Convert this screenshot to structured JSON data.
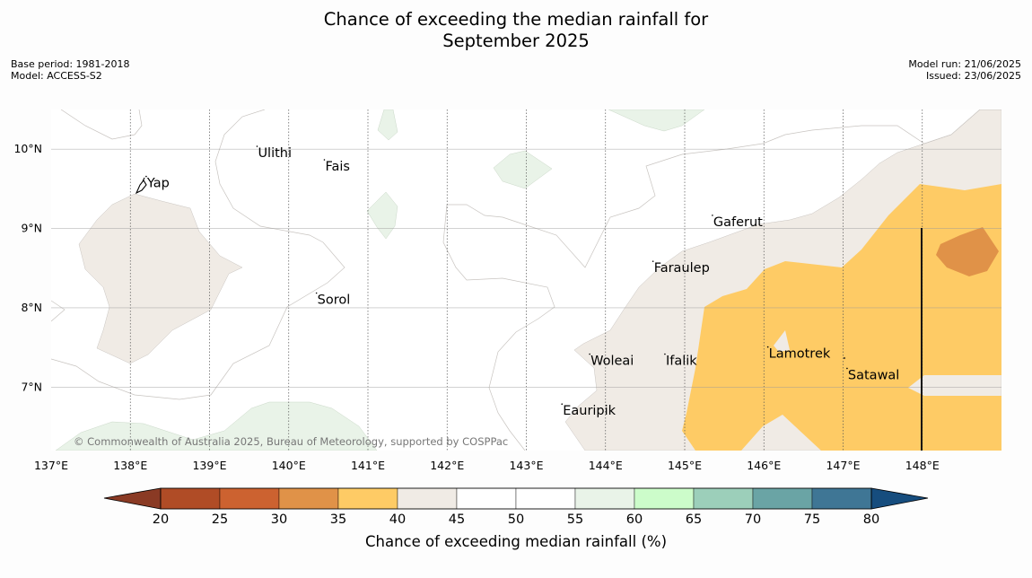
{
  "title": {
    "line1": "Chance of exceeding the median rainfall for",
    "line2": "September 2025"
  },
  "meta_left": {
    "base_period": "Base period: 1981-2018",
    "model": "Model: ACCESS-S2"
  },
  "meta_right": {
    "model_run": "Model run: 21/06/2025",
    "issued": "Issued: 23/06/2025"
  },
  "map": {
    "extent": {
      "lon_min": 137.0,
      "lon_max": 149.0,
      "lat_min": 6.2,
      "lat_max": 10.5
    },
    "lon_ticks": [
      {
        "value": 137,
        "label": "137°E"
      },
      {
        "value": 138,
        "label": "138°E"
      },
      {
        "value": 139,
        "label": "139°E"
      },
      {
        "value": 140,
        "label": "140°E"
      },
      {
        "value": 141,
        "label": "141°E"
      },
      {
        "value": 142,
        "label": "142°E"
      },
      {
        "value": 143,
        "label": "143°E"
      },
      {
        "value": 144,
        "label": "144°E"
      },
      {
        "value": 145,
        "label": "145°E"
      },
      {
        "value": 146,
        "label": "146°E"
      },
      {
        "value": 147,
        "label": "147°E"
      },
      {
        "value": 148,
        "label": "148°E"
      }
    ],
    "lat_ticks": [
      {
        "value": 10,
        "label": "10°N"
      },
      {
        "value": 9,
        "label": "9°N"
      },
      {
        "value": 8,
        "label": "8°N"
      },
      {
        "value": 7,
        "label": "7°N"
      }
    ],
    "places": [
      {
        "name": "Yap",
        "lon": 138.2,
        "lat": 9.52
      },
      {
        "name": "Ulithi",
        "lon": 139.6,
        "lat": 9.9
      },
      {
        "name": "Fais",
        "lon": 140.45,
        "lat": 9.73
      },
      {
        "name": "Gaferut",
        "lon": 145.35,
        "lat": 9.03
      },
      {
        "name": "Faraulep",
        "lon": 144.6,
        "lat": 8.45
      },
      {
        "name": "Sorol",
        "lon": 140.35,
        "lat": 8.05
      },
      {
        "name": "Lamotrek",
        "lon": 146.05,
        "lat": 7.37
      },
      {
        "name": "Woleai",
        "lon": 143.8,
        "lat": 7.28
      },
      {
        "name": "Ifalik",
        "lon": 144.75,
        "lat": 7.28
      },
      {
        "name": "Satawal",
        "lon": 147.05,
        "lat": 7.1
      },
      {
        "name": "Eauripik",
        "lon": 143.45,
        "lat": 6.65
      }
    ],
    "credit": "© Commonwealth of Australia 2025, Bureau of Meteorology, supported by COSPPac"
  },
  "colorbar": {
    "title": "Chance of exceeding median rainfall (%)",
    "ticks": [
      "20",
      "25",
      "30",
      "35",
      "40",
      "45",
      "50",
      "55",
      "60",
      "65",
      "70",
      "75",
      "80"
    ],
    "under_color": "#8a3a24",
    "over_color": "#164d7e",
    "colors": [
      "#b04c26",
      "#cc6230",
      "#e09248",
      "#fecb65",
      "#f0ebe5",
      "#ffffff",
      "#ffffff",
      "#e9f3e8",
      "#ccfcca",
      "#9ccfba",
      "#6aa4a5",
      "#3f7695"
    ]
  },
  "chart_data": {
    "type": "heatmap",
    "title": "Chance of exceeding the median rainfall for September 2025",
    "xlabel": "",
    "ylabel": "",
    "xlim": [
      137.0,
      149.0
    ],
    "ylim": [
      6.2,
      10.5
    ],
    "colorbar_label": "Chance of exceeding median rainfall (%)",
    "bins": [
      "<20",
      "20-25",
      "25-30",
      "30-35",
      "35-40",
      "40-45",
      "45-50",
      "50-55",
      "55-60",
      "60-65",
      "65-70",
      "70-75",
      "75-80",
      ">80"
    ],
    "regions": [
      {
        "area": "east of ~145°E from ~6.2°N to ~9.5°N",
        "category": "35-40"
      },
      {
        "area": "near 148.5°E, 8.5°N",
        "category": "30-35"
      },
      {
        "area": "west around Yap and much of the central-east",
        "category": "40-45"
      },
      {
        "area": "small patches near 138.5°E, 141°E, 143°E and 144.5°E",
        "category": "55-60"
      }
    ]
  }
}
